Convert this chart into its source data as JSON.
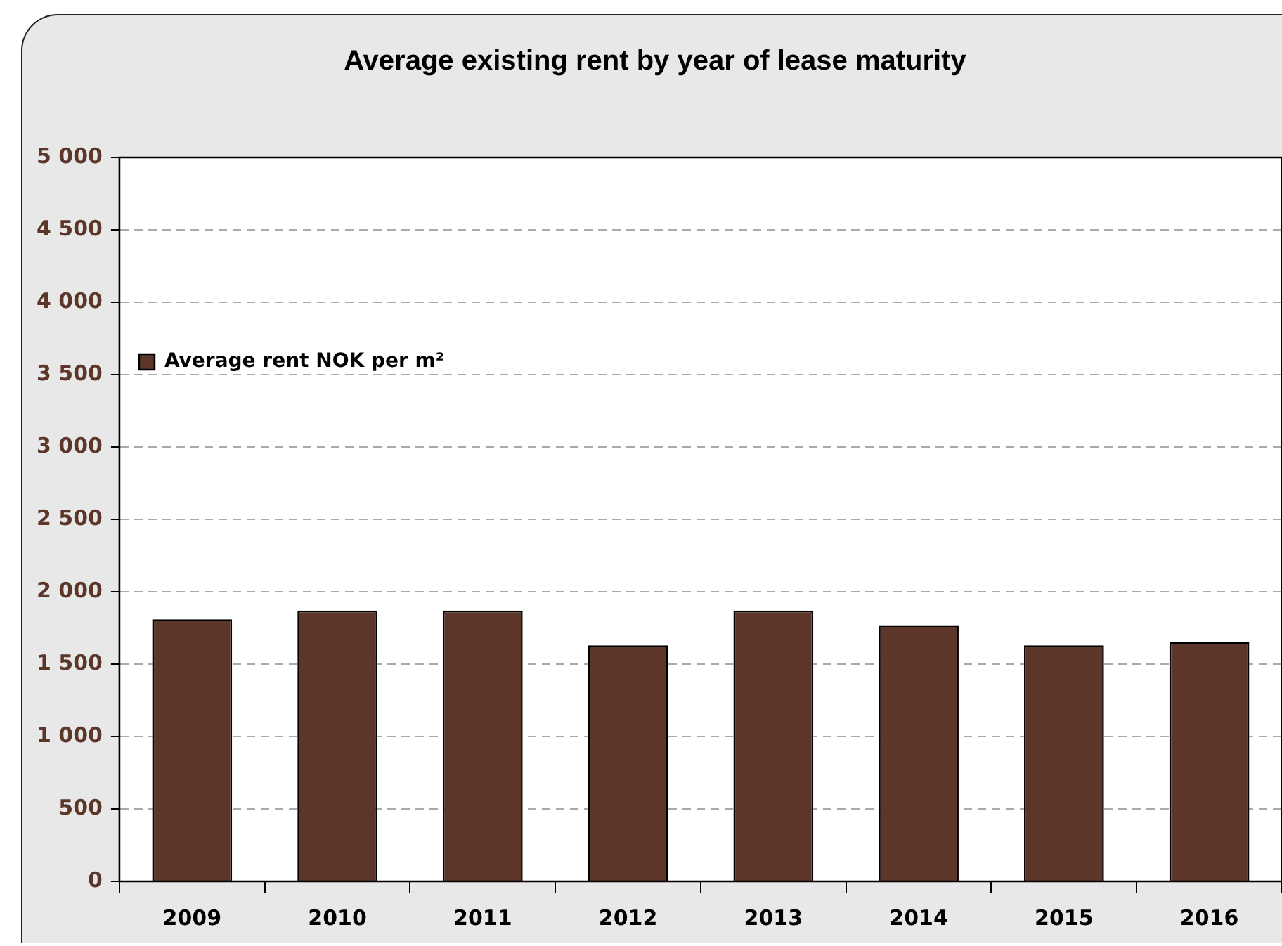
{
  "chart_data": {
    "type": "bar",
    "title": "Average existing rent by year of lease maturity",
    "categories": [
      "2009",
      "2010",
      "2011",
      "2012",
      "2013",
      "2014",
      "2015",
      "2016"
    ],
    "series": [
      {
        "name": "Average rent NOK per m²",
        "color": "#5c3628",
        "values": [
          1810,
          1870,
          1870,
          1630,
          1870,
          1770,
          1630,
          1650
        ]
      }
    ],
    "ylim": [
      0,
      5000
    ],
    "yticks": [
      0,
      500,
      {
        "value": 1000,
        "label": "1 000"
      },
      {
        "value": 1500,
        "label": "1 500"
      },
      {
        "value": 2000,
        "label": "2 000"
      },
      {
        "value": 2500,
        "label": "2 500"
      },
      {
        "value": 3000,
        "label": "3 000"
      },
      {
        "value": 3500,
        "label": "3 500"
      },
      {
        "value": 4000,
        "label": "4 000"
      },
      {
        "value": 4500,
        "label": "4 500"
      },
      {
        "value": 5000,
        "label": "5 000"
      }
    ],
    "grid": "y",
    "legend": "top"
  }
}
